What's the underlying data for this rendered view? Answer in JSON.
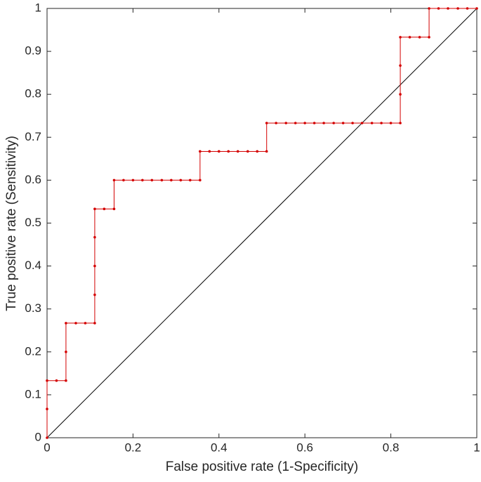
{
  "chart_data": {
    "type": "line",
    "x_label": "False positive rate (1-Specificity)",
    "y_label": "True positive rate (Sensitivity)",
    "x": [
      0,
      0,
      0,
      0.022,
      0.044,
      0.044,
      0.044,
      0.067,
      0.089,
      0.111,
      0.111,
      0.111,
      0.111,
      0.111,
      0.133,
      0.156,
      0.156,
      0.178,
      0.2,
      0.222,
      0.244,
      0.267,
      0.289,
      0.311,
      0.333,
      0.356,
      0.356,
      0.378,
      0.4,
      0.422,
      0.444,
      0.467,
      0.489,
      0.511,
      0.511,
      0.533,
      0.556,
      0.578,
      0.6,
      0.622,
      0.644,
      0.667,
      0.689,
      0.711,
      0.733,
      0.756,
      0.778,
      0.8,
      0.822,
      0.822,
      0.822,
      0.822,
      0.844,
      0.867,
      0.889,
      0.889,
      0.911,
      0.933,
      0.956,
      0.978,
      1
    ],
    "series": [
      {
        "color": "#d40000",
        "values": [
          0,
          0.067,
          0.133,
          0.133,
          0.133,
          0.2,
          0.267,
          0.267,
          0.267,
          0.267,
          0.333,
          0.4,
          0.467,
          0.533,
          0.533,
          0.533,
          0.6,
          0.6,
          0.6,
          0.6,
          0.6,
          0.6,
          0.6,
          0.6,
          0.6,
          0.6,
          0.667,
          0.667,
          0.667,
          0.667,
          0.667,
          0.667,
          0.667,
          0.667,
          0.733,
          0.733,
          0.733,
          0.733,
          0.733,
          0.733,
          0.733,
          0.733,
          0.733,
          0.733,
          0.733,
          0.733,
          0.733,
          0.733,
          0.733,
          0.8,
          0.867,
          0.933,
          0.933,
          0.933,
          0.933,
          1,
          1,
          1,
          1,
          1,
          1
        ]
      }
    ],
    "xlim": [
      0,
      1
    ],
    "ylim": [
      0,
      1
    ],
    "xticks": [
      0,
      0.2,
      0.4,
      0.6,
      0.8,
      1
    ],
    "yticks": [
      0,
      0.1,
      0.2,
      0.3,
      0.4,
      0.5,
      0.6,
      0.7,
      0.8,
      0.9,
      1
    ]
  }
}
